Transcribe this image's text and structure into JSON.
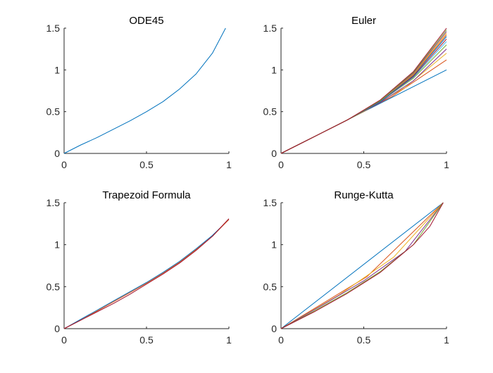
{
  "figure": {
    "background": "#ffffff"
  },
  "colors": [
    "#0072BD",
    "#D95319",
    "#EDB120",
    "#7E2F8E",
    "#77AC30",
    "#4DBEEE",
    "#A2142F"
  ],
  "chart_data": [
    {
      "type": "line",
      "title": "ODE45",
      "xlim": [
        0,
        1
      ],
      "ylim": [
        0,
        1.5
      ],
      "xticks": [
        0,
        0.5,
        1
      ],
      "xtick_labels": [
        "0",
        "0.5",
        "1"
      ],
      "yticks": [
        0,
        0.5,
        1,
        1.5
      ],
      "ytick_labels": [
        "0",
        "0.5",
        "1",
        "1.5"
      ],
      "grid": false,
      "series": [
        {
          "color": "#0072BD",
          "x": [
            0,
            0.1,
            0.2,
            0.3,
            0.4,
            0.5,
            0.6,
            0.7,
            0.8,
            0.9,
            0.98
          ],
          "y": [
            0,
            0.1,
            0.19,
            0.29,
            0.39,
            0.5,
            0.62,
            0.77,
            0.95,
            1.2,
            1.5
          ]
        }
      ]
    },
    {
      "type": "line",
      "title": "Euler",
      "xlim": [
        0,
        1
      ],
      "ylim": [
        0,
        1.5
      ],
      "xticks": [
        0,
        0.5,
        1
      ],
      "xtick_labels": [
        "0",
        "0.5",
        "1"
      ],
      "yticks": [
        0,
        0.5,
        1,
        1.5
      ],
      "ytick_labels": [
        "0",
        "0.5",
        "1",
        "1.5"
      ],
      "grid": false,
      "series": [
        {
          "color": "#0072BD",
          "x": [
            0,
            0.5,
            1
          ],
          "y": [
            0,
            0.5,
            1.0
          ]
        },
        {
          "color": "#D95319",
          "x": [
            0,
            0.33,
            0.67,
            1
          ],
          "y": [
            0,
            0.33,
            0.68,
            1.12
          ]
        },
        {
          "color": "#EDB120",
          "x": [
            0,
            0.25,
            0.5,
            0.75,
            1
          ],
          "y": [
            0,
            0.25,
            0.5,
            0.79,
            1.2
          ]
        },
        {
          "color": "#7E2F8E",
          "x": [
            0,
            0.2,
            0.4,
            0.6,
            0.8,
            1
          ],
          "y": [
            0,
            0.2,
            0.4,
            0.61,
            0.87,
            1.25
          ]
        },
        {
          "color": "#77AC30",
          "x": [
            0,
            0.2,
            0.4,
            0.6,
            0.8,
            1
          ],
          "y": [
            0,
            0.2,
            0.4,
            0.62,
            0.9,
            1.3
          ]
        },
        {
          "color": "#4DBEEE",
          "x": [
            0,
            0.2,
            0.4,
            0.6,
            0.8,
            1
          ],
          "y": [
            0,
            0.2,
            0.4,
            0.62,
            0.91,
            1.34
          ]
        },
        {
          "color": "#A2142F",
          "x": [
            0,
            0.2,
            0.4,
            0.6,
            0.8,
            1
          ],
          "y": [
            0,
            0.2,
            0.4,
            0.62,
            0.92,
            1.37
          ]
        },
        {
          "color": "#0072BD",
          "x": [
            0,
            0.2,
            0.4,
            0.6,
            0.8,
            1
          ],
          "y": [
            0,
            0.2,
            0.4,
            0.62,
            0.93,
            1.4
          ]
        },
        {
          "color": "#D95319",
          "x": [
            0,
            0.2,
            0.4,
            0.6,
            0.8,
            1
          ],
          "y": [
            0,
            0.2,
            0.4,
            0.63,
            0.94,
            1.42
          ]
        },
        {
          "color": "#EDB120",
          "x": [
            0,
            0.2,
            0.4,
            0.6,
            0.8,
            1
          ],
          "y": [
            0,
            0.2,
            0.4,
            0.63,
            0.95,
            1.44
          ]
        },
        {
          "color": "#7E2F8E",
          "x": [
            0,
            0.2,
            0.4,
            0.6,
            0.8,
            1
          ],
          "y": [
            0,
            0.2,
            0.4,
            0.63,
            0.96,
            1.46
          ]
        },
        {
          "color": "#77AC30",
          "x": [
            0,
            0.2,
            0.4,
            0.6,
            0.8,
            1
          ],
          "y": [
            0,
            0.2,
            0.4,
            0.63,
            0.97,
            1.48
          ]
        },
        {
          "color": "#A2142F",
          "x": [
            0,
            0.2,
            0.4,
            0.6,
            0.8,
            1
          ],
          "y": [
            0,
            0.2,
            0.4,
            0.64,
            0.98,
            1.5
          ]
        }
      ]
    },
    {
      "type": "line",
      "title": "Trapezoid Formula",
      "xlim": [
        0,
        1
      ],
      "ylim": [
        0,
        1.5
      ],
      "xticks": [
        0,
        0.5,
        1
      ],
      "xtick_labels": [
        "0",
        "0.5",
        "1"
      ],
      "yticks": [
        0,
        0.5,
        1,
        1.5
      ],
      "ytick_labels": [
        "0",
        "0.5",
        "1",
        "1.5"
      ],
      "grid": false,
      "series": [
        {
          "color": "#0072BD",
          "x": [
            0,
            0.1,
            0.2,
            0.3,
            0.4,
            0.5,
            0.6,
            0.7,
            0.8,
            0.9,
            1
          ],
          "y": [
            0,
            0.11,
            0.22,
            0.33,
            0.44,
            0.55,
            0.67,
            0.8,
            0.95,
            1.11,
            1.3
          ]
        },
        {
          "color": "#D95319",
          "x": [
            0,
            0.1,
            0.2,
            0.3,
            0.4,
            0.5,
            0.6,
            0.7,
            0.8,
            0.9,
            1
          ],
          "y": [
            0,
            0.1,
            0.21,
            0.32,
            0.43,
            0.54,
            0.66,
            0.79,
            0.94,
            1.1,
            1.3
          ]
        },
        {
          "color": "#A2142F",
          "x": [
            0,
            0.1,
            0.2,
            0.3,
            0.4,
            0.5,
            0.6,
            0.7,
            0.8,
            0.9,
            1
          ],
          "y": [
            0,
            0.1,
            0.2,
            0.3,
            0.41,
            0.53,
            0.65,
            0.78,
            0.93,
            1.1,
            1.31
          ]
        }
      ]
    },
    {
      "type": "line",
      "title": "Runge-Kutta",
      "xlim": [
        0,
        1
      ],
      "ylim": [
        0,
        1.5
      ],
      "xticks": [
        0,
        0.5,
        1
      ],
      "xtick_labels": [
        "0",
        "0.5",
        "1"
      ],
      "yticks": [
        0,
        0.5,
        1,
        1.5
      ],
      "ytick_labels": [
        "0",
        "0.5",
        "1",
        "1.5"
      ],
      "grid": false,
      "series": [
        {
          "color": "#0072BD",
          "x": [
            0,
            0.98
          ],
          "y": [
            0,
            1.5
          ]
        },
        {
          "color": "#D95319",
          "x": [
            0,
            0.52,
            0.98
          ],
          "y": [
            0,
            0.62,
            1.5
          ]
        },
        {
          "color": "#EDB120",
          "x": [
            0,
            0.35,
            0.68,
            0.98
          ],
          "y": [
            0,
            0.4,
            0.85,
            1.5
          ]
        },
        {
          "color": "#7E2F8E",
          "x": [
            0,
            0.25,
            0.5,
            0.75,
            0.98
          ],
          "y": [
            0,
            0.28,
            0.57,
            0.92,
            1.5
          ]
        },
        {
          "color": "#77AC30",
          "x": [
            0,
            0.2,
            0.4,
            0.6,
            0.8,
            0.98
          ],
          "y": [
            0,
            0.21,
            0.43,
            0.68,
            1.0,
            1.5
          ]
        },
        {
          "color": "#A2142F",
          "x": [
            0,
            0.2,
            0.4,
            0.6,
            0.8,
            0.9,
            0.98
          ],
          "y": [
            0,
            0.2,
            0.42,
            0.67,
            1.0,
            1.22,
            1.5
          ]
        }
      ]
    }
  ]
}
